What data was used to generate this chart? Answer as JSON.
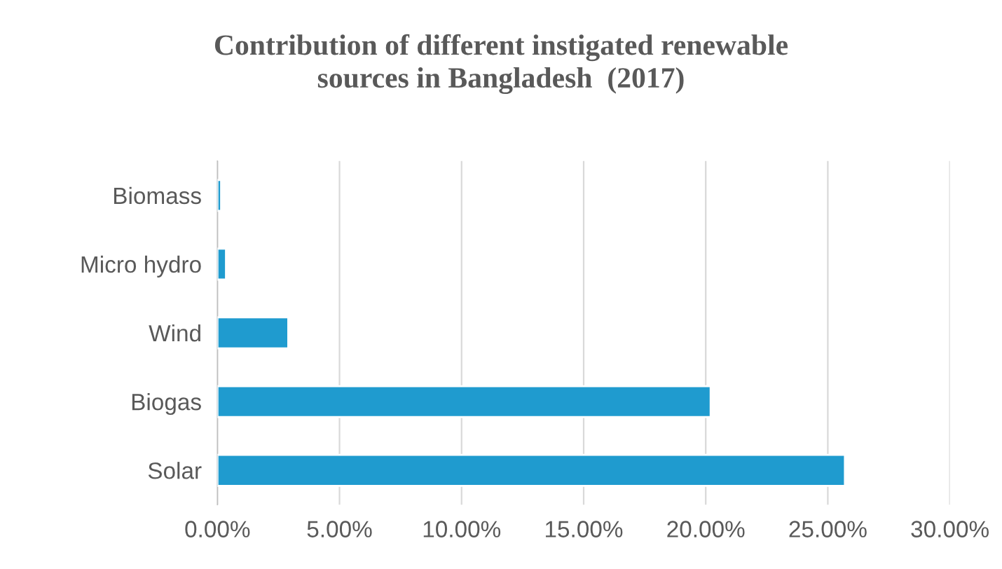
{
  "chart_data": {
    "type": "bar",
    "orientation": "horizontal",
    "title": "Contribution of different instigated renewable\nsources in Bangladesh  (2017)",
    "categories": [
      "Biomass",
      "Micro hydro",
      "Wind",
      "Biogas",
      "Solar"
    ],
    "values": [
      0.15,
      0.35,
      2.9,
      20.2,
      25.7
    ],
    "color": "#1f9bcf",
    "xlim": [
      0,
      30
    ],
    "xticks": [
      {
        "value": 0,
        "label": "0.00%"
      },
      {
        "value": 5,
        "label": "5.00%"
      },
      {
        "value": 10,
        "label": "10.00%"
      },
      {
        "value": 15,
        "label": "15.00%"
      },
      {
        "value": 20,
        "label": "20.00%"
      },
      {
        "value": 25,
        "label": "25.00%"
      },
      {
        "value": 30,
        "label": "30.00%"
      }
    ],
    "grid": "x",
    "legend": false
  }
}
